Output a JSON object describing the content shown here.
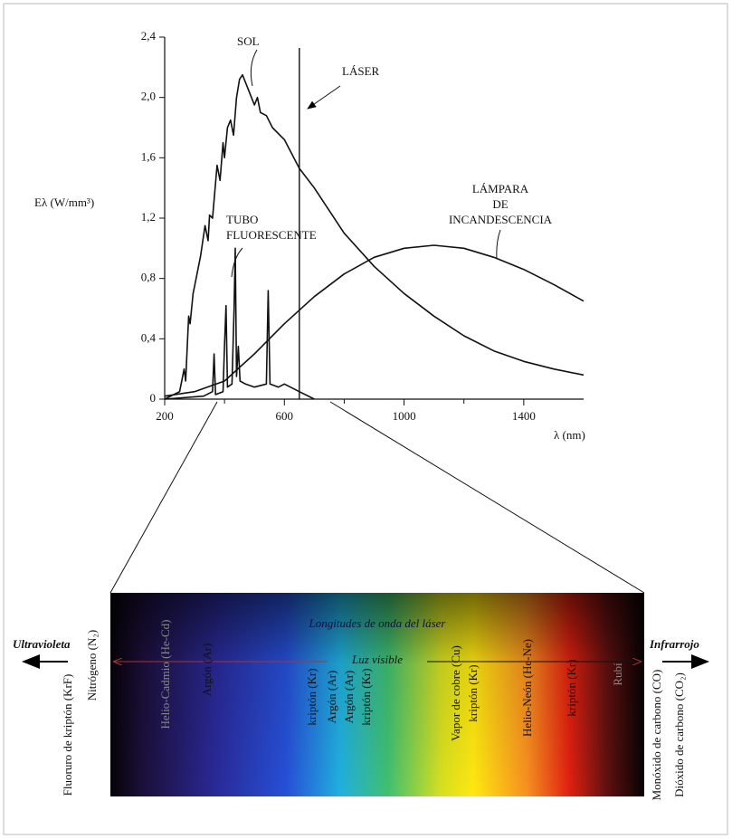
{
  "chart_data": {
    "type": "line",
    "y_label": "Eλ (W/mm³)",
    "x_label": "λ (nm)",
    "xlim": [
      200,
      1600
    ],
    "xticks": [
      200,
      600,
      1000,
      1400
    ],
    "x_minor_ticks": [
      400,
      800,
      1200
    ],
    "ylim": [
      0,
      2.4
    ],
    "yticks": [
      0,
      {
        "value": 0.4,
        "label": "0,4"
      },
      {
        "value": 0.8,
        "label": "0,8"
      },
      {
        "value": 1.2,
        "label": "1,2"
      },
      {
        "value": 1.6,
        "label": "1,6"
      },
      {
        "value": 2.0,
        "label": "2,0"
      },
      {
        "value": 2.4,
        "label": "2,4"
      }
    ],
    "series": [
      {
        "name": "SOL",
        "color": "#111111",
        "x": [
          200,
          250,
          265,
          270,
          280,
          285,
          295,
          300,
          320,
          335,
          345,
          350,
          360,
          375,
          385,
          395,
          400,
          410,
          420,
          430,
          440,
          450,
          460,
          470,
          480,
          490,
          500,
          510,
          520,
          540,
          560,
          600,
          650,
          700,
          800,
          900,
          1000,
          1100,
          1200,
          1300,
          1400,
          1500,
          1600
        ],
        "values": [
          0,
          0.05,
          0.2,
          0.12,
          0.55,
          0.5,
          0.7,
          0.75,
          0.95,
          1.15,
          1.05,
          1.22,
          1.2,
          1.55,
          1.45,
          1.7,
          1.6,
          1.8,
          1.85,
          1.75,
          2.0,
          2.12,
          2.15,
          2.1,
          2.05,
          2.0,
          1.95,
          2.0,
          1.9,
          1.88,
          1.8,
          1.72,
          1.53,
          1.4,
          1.1,
          0.88,
          0.7,
          0.55,
          0.42,
          0.32,
          0.25,
          0.2,
          0.16
        ]
      },
      {
        "name": "TUBO FLUORESCENTE",
        "color": "#111111",
        "x": [
          200,
          330,
          360,
          365,
          370,
          395,
          400,
          405,
          410,
          425,
          432,
          436,
          440,
          446,
          452,
          470,
          500,
          540,
          546,
          552,
          580,
          600,
          650,
          700
        ],
        "values": [
          0,
          0.02,
          0.05,
          0.3,
          0.03,
          0.05,
          0.35,
          0.62,
          0.08,
          0.1,
          0.6,
          1.0,
          0.15,
          0.35,
          0.12,
          0.1,
          0.08,
          0.1,
          0.72,
          0.1,
          0.08,
          0.1,
          0.05,
          0
        ]
      },
      {
        "name": "LÁMPARA DE INCANDESCENCIA",
        "color": "#111111",
        "x": [
          200,
          300,
          400,
          500,
          600,
          700,
          800,
          900,
          1000,
          1100,
          1200,
          1300,
          1400,
          1500,
          1600
        ],
        "values": [
          0.02,
          0.05,
          0.12,
          0.3,
          0.5,
          0.68,
          0.83,
          0.94,
          1.0,
          1.02,
          1.0,
          0.94,
          0.86,
          0.76,
          0.65
        ]
      }
    ],
    "laser": {
      "name": "LÁSER",
      "x": 650
    }
  },
  "spectrum": {
    "title": "Longitudes de onda del láser",
    "visible": "Luz visible",
    "uv": "Ultravioleta",
    "ir": "Infrarrojo",
    "lasers": [
      "Fluoruro de kriptón (KrF)",
      "Nitrógeno (N₂)",
      "Helio-Cadmio (He-Cd)",
      "Argón (Ar)",
      "kriptón (Kr)",
      "Argón (Ar)",
      "Argón (Ar)",
      "kriptón (Kr)",
      "Vapor de cobre (Cu)",
      "kriptón (Kr)",
      "Helio-Neón (He-Ne)",
      "kriptón (Kr)",
      "Rubí",
      "Monóxido de carbono (CO)",
      "Dióxido de carbono (CO₂)"
    ]
  }
}
